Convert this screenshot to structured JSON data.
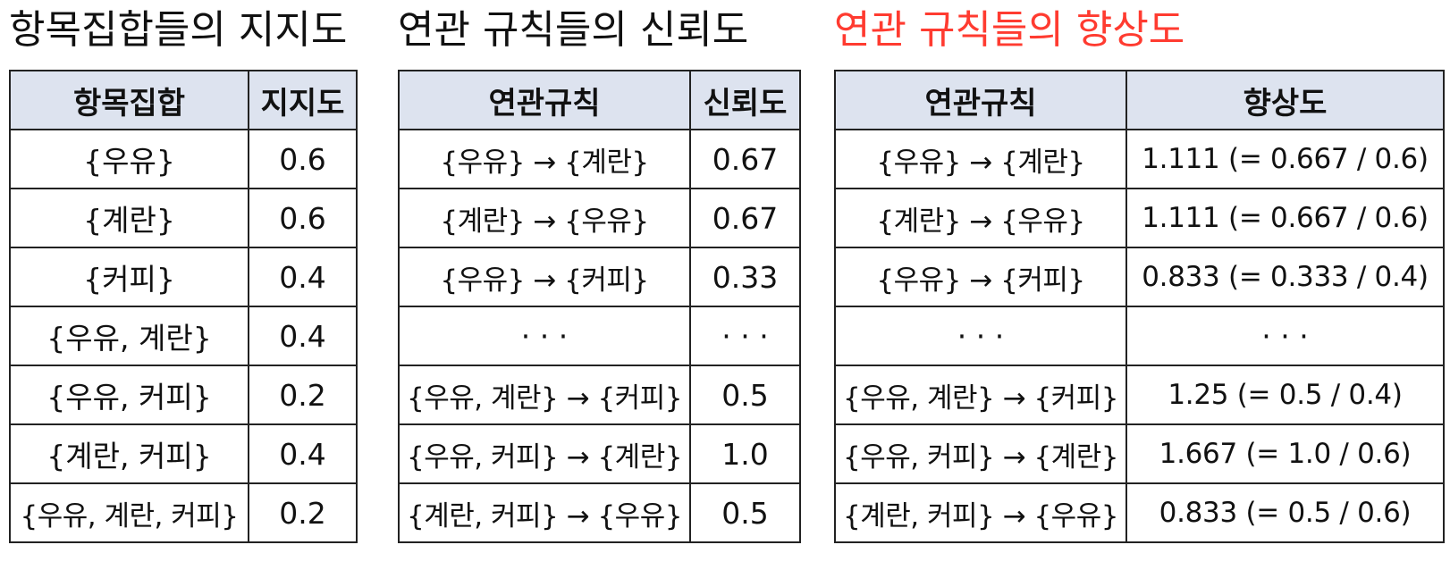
{
  "support": {
    "title": "항목집합들의 지지도",
    "headers": [
      "항목집합",
      "지지도"
    ],
    "rows": [
      [
        "{우유}",
        "0.6"
      ],
      [
        "{계란}",
        "0.6"
      ],
      [
        "{커피}",
        "0.4"
      ],
      [
        "{우유, 계란}",
        "0.4"
      ],
      [
        "{우유, 커피}",
        "0.2"
      ],
      [
        "{계란, 커피}",
        "0.4"
      ],
      [
        "{우유, 계란, 커피}",
        "0.2"
      ]
    ]
  },
  "confidence": {
    "title": "연관 규칙들의 신뢰도",
    "headers": [
      "연관규칙",
      "신뢰도"
    ],
    "rows": [
      [
        "{우유} → {계란}",
        "0.67"
      ],
      [
        "{계란} → {우유}",
        "0.67"
      ],
      [
        "{우유} → {커피}",
        "0.33"
      ],
      [
        "· · ·",
        "· · ·"
      ],
      [
        "{우유, 계란} → {커피}",
        "0.5"
      ],
      [
        "{우유, 커피} → {계란}",
        "1.0"
      ],
      [
        "{계란, 커피} → {우유}",
        "0.5"
      ]
    ]
  },
  "lift": {
    "title": "연관 규칙들의 향상도",
    "title_color": "#ff3b30",
    "headers": [
      "연관규칙",
      "향상도"
    ],
    "rows": [
      [
        "{우유} → {계란}",
        "1.111 (= 0.667 / 0.6)"
      ],
      [
        "{계란} → {우유}",
        "1.111 (= 0.667 / 0.6)"
      ],
      [
        "{우유} → {커피}",
        "0.833 (= 0.333 / 0.4)"
      ],
      [
        "· · ·",
        "· · ·"
      ],
      [
        "{우유, 계란} → {커피}",
        "1.25 (= 0.5 / 0.4)"
      ],
      [
        "{우유, 커피} → {계란}",
        "1.667 (= 1.0 / 0.6)"
      ],
      [
        "{계란, 커피} → {우유}",
        "0.833 (= 0.5 / 0.6)"
      ]
    ]
  },
  "colors": {
    "header_bg": "#dde3ef",
    "border": "#222222",
    "accent_title": "#ff3b30"
  }
}
